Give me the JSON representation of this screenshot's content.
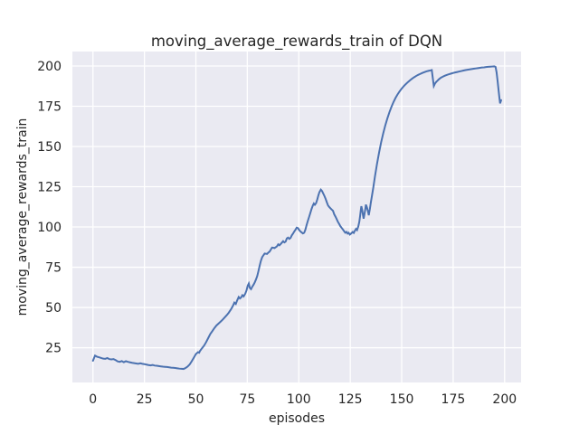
{
  "chart_data": {
    "type": "line",
    "title": "moving_average_rewards_train of DQN",
    "xlabel": "episodes",
    "ylabel": "moving_average_rewards_train",
    "xlim": [
      -10,
      208
    ],
    "ylim": [
      3.4,
      209
    ],
    "xticks": [
      0,
      25,
      50,
      75,
      100,
      125,
      150,
      175,
      200
    ],
    "yticks": [
      25,
      50,
      75,
      100,
      125,
      150,
      175,
      200
    ],
    "grid": true,
    "legend_position": "none",
    "colors": {
      "line": "#4C72B0",
      "plot_background": "#EAEAF2",
      "grid": "#FFFFFF",
      "text": "#262626",
      "figure_background": "#FFFFFF"
    },
    "series": [
      {
        "name": "moving_average_rewards_train",
        "points": [
          [
            0,
            16.9
          ],
          [
            1,
            20.1
          ],
          [
            2,
            19.4
          ],
          [
            3,
            19.0
          ],
          [
            4,
            18.6
          ],
          [
            5,
            18.2
          ],
          [
            6,
            18.1
          ],
          [
            7,
            18.6
          ],
          [
            8,
            17.9
          ],
          [
            9,
            17.7
          ],
          [
            10,
            17.9
          ],
          [
            11,
            17.3
          ],
          [
            12,
            16.5
          ],
          [
            13,
            16.2
          ],
          [
            14,
            16.7
          ],
          [
            15,
            16.0
          ],
          [
            16,
            16.6
          ],
          [
            17,
            16.2
          ],
          [
            18,
            15.9
          ],
          [
            19,
            15.6
          ],
          [
            20,
            15.4
          ],
          [
            21,
            15.2
          ],
          [
            22,
            15.0
          ],
          [
            23,
            15.3
          ],
          [
            24,
            15.0
          ],
          [
            25,
            14.8
          ],
          [
            26,
            14.5
          ],
          [
            27,
            14.2
          ],
          [
            28,
            14.0
          ],
          [
            29,
            14.3
          ],
          [
            30,
            13.9
          ],
          [
            31,
            13.8
          ],
          [
            32,
            13.6
          ],
          [
            33,
            13.4
          ],
          [
            34,
            13.2
          ],
          [
            35,
            13.1
          ],
          [
            36,
            13.0
          ],
          [
            37,
            12.8
          ],
          [
            38,
            12.6
          ],
          [
            39,
            12.5
          ],
          [
            40,
            12.4
          ],
          [
            41,
            12.2
          ],
          [
            42,
            12.0
          ],
          [
            43,
            11.9
          ],
          [
            44,
            11.8
          ],
          [
            45,
            12.4
          ],
          [
            46,
            13.3
          ],
          [
            47,
            14.6
          ],
          [
            48,
            16.6
          ],
          [
            49,
            18.8
          ],
          [
            50,
            21.0
          ],
          [
            51,
            22.2
          ],
          [
            51.6,
            21.9
          ],
          [
            52,
            23.0
          ],
          [
            53,
            24.7
          ],
          [
            54,
            26.3
          ],
          [
            55,
            28.5
          ],
          [
            56,
            31.0
          ],
          [
            57,
            33.5
          ],
          [
            58,
            35.3
          ],
          [
            59,
            37.2
          ],
          [
            60,
            38.8
          ],
          [
            61,
            40.0
          ],
          [
            62,
            41.2
          ],
          [
            63,
            42.4
          ],
          [
            64,
            43.8
          ],
          [
            65,
            45.2
          ],
          [
            66,
            46.8
          ],
          [
            67,
            48.7
          ],
          [
            68,
            51.0
          ],
          [
            68.7,
            53.0
          ],
          [
            69.4,
            52.2
          ],
          [
            70,
            54.2
          ],
          [
            70.8,
            56.5
          ],
          [
            71.4,
            55.6
          ],
          [
            72,
            56.2
          ],
          [
            72.6,
            57.6
          ],
          [
            73.2,
            56.9
          ],
          [
            74,
            58.6
          ],
          [
            74.6,
            60.6
          ],
          [
            75.2,
            63.6
          ],
          [
            75.7,
            64.9
          ],
          [
            76.2,
            62.2
          ],
          [
            76.8,
            61.4
          ],
          [
            77.4,
            62.9
          ],
          [
            78,
            64.1
          ],
          [
            78.6,
            65.6
          ],
          [
            79.2,
            67.4
          ],
          [
            79.8,
            69.5
          ],
          [
            80.4,
            72.6
          ],
          [
            81,
            76.0
          ],
          [
            81.6,
            79.0
          ],
          [
            82.2,
            81.2
          ],
          [
            82.8,
            82.4
          ],
          [
            83.4,
            83.5
          ],
          [
            84,
            83.4
          ],
          [
            84.6,
            83.3
          ],
          [
            85.2,
            84.1
          ],
          [
            85.8,
            84.7
          ],
          [
            86.4,
            85.9
          ],
          [
            87,
            87.2
          ],
          [
            87.6,
            87.1
          ],
          [
            88.2,
            86.9
          ],
          [
            88.8,
            87.4
          ],
          [
            89.4,
            88.0
          ],
          [
            90,
            89.2
          ],
          [
            90.6,
            88.6
          ],
          [
            91.2,
            89.4
          ],
          [
            91.8,
            90.3
          ],
          [
            92.4,
            91.2
          ],
          [
            93,
            90.4
          ],
          [
            93.6,
            90.9
          ],
          [
            94.2,
            92.9
          ],
          [
            94.8,
            93.4
          ],
          [
            95.4,
            92.6
          ],
          [
            96,
            93.2
          ],
          [
            96.6,
            94.8
          ],
          [
            97.2,
            95.9
          ],
          [
            97.8,
            97.2
          ],
          [
            98.4,
            98.3
          ],
          [
            99,
            99.6
          ],
          [
            99.6,
            99.3
          ],
          [
            100.2,
            98.1
          ],
          [
            100.8,
            97.2
          ],
          [
            101.4,
            96.6
          ],
          [
            102,
            96.0
          ],
          [
            102.6,
            96.4
          ],
          [
            103.2,
            98.3
          ],
          [
            103.8,
            101.2
          ],
          [
            104.4,
            103.8
          ],
          [
            105,
            106.2
          ],
          [
            105.6,
            108.7
          ],
          [
            106.2,
            111.2
          ],
          [
            106.8,
            113.3
          ],
          [
            107.3,
            114.6
          ],
          [
            107.8,
            113.8
          ],
          [
            108.4,
            114.8
          ],
          [
            109,
            117.2
          ],
          [
            109.5,
            119.6
          ],
          [
            110,
            121.6
          ],
          [
            110.7,
            123.2
          ],
          [
            111.3,
            122.3
          ],
          [
            111.8,
            121.0
          ],
          [
            112.4,
            119.4
          ],
          [
            113,
            117.6
          ],
          [
            113.6,
            115.4
          ],
          [
            114.2,
            113.4
          ],
          [
            114.8,
            112.4
          ],
          [
            115.4,
            111.6
          ],
          [
            116,
            110.8
          ],
          [
            116.6,
            110.1
          ],
          [
            117.2,
            107.9
          ],
          [
            117.8,
            106.5
          ],
          [
            118.4,
            104.9
          ],
          [
            119,
            103.2
          ],
          [
            119.6,
            101.9
          ],
          [
            120.2,
            100.5
          ],
          [
            120.8,
            99.5
          ],
          [
            121.4,
            98.5
          ],
          [
            122,
            97.4
          ],
          [
            122.6,
            96.4
          ],
          [
            123.2,
            96.9
          ],
          [
            123.7,
            95.9
          ],
          [
            124.2,
            96.4
          ],
          [
            124.8,
            95.3
          ],
          [
            125.4,
            95.9
          ],
          [
            126.2,
            96.9
          ],
          [
            126.7,
            96.3
          ],
          [
            127.3,
            97.8
          ],
          [
            127.8,
            98.8
          ],
          [
            128.3,
            98.1
          ],
          [
            128.9,
            100.3
          ],
          [
            129.4,
            103.2
          ],
          [
            129.8,
            107.0
          ],
          [
            130.1,
            110.2
          ],
          [
            130.4,
            112.9
          ],
          [
            130.8,
            110.6
          ],
          [
            131.2,
            107.3
          ],
          [
            131.5,
            105.2
          ],
          [
            131.9,
            108.0
          ],
          [
            132.3,
            111.0
          ],
          [
            132.6,
            113.9
          ],
          [
            133.1,
            112.2
          ],
          [
            133.6,
            109.8
          ],
          [
            134,
            107.3
          ],
          [
            134.5,
            110.9
          ],
          [
            135,
            115.2
          ],
          [
            135.6,
            119.8
          ],
          [
            136.2,
            124.5
          ],
          [
            137,
            131.4
          ],
          [
            138,
            139.2
          ],
          [
            139,
            146.2
          ],
          [
            140,
            152.6
          ],
          [
            141,
            158.1
          ],
          [
            142,
            163.0
          ],
          [
            143,
            167.3
          ],
          [
            144,
            171.2
          ],
          [
            145,
            174.6
          ],
          [
            146,
            177.6
          ],
          [
            147,
            180.2
          ],
          [
            148,
            182.4
          ],
          [
            149,
            184.3
          ],
          [
            150,
            186.0
          ],
          [
            151,
            187.5
          ],
          [
            152,
            188.8
          ],
          [
            153,
            190.0
          ],
          [
            154,
            191.1
          ],
          [
            155,
            192.1
          ],
          [
            156,
            193.0
          ],
          [
            157,
            193.8
          ],
          [
            158,
            194.5
          ],
          [
            159,
            195.1
          ],
          [
            160,
            195.7
          ],
          [
            161,
            196.2
          ],
          [
            162,
            196.7
          ],
          [
            163,
            197.0
          ],
          [
            164,
            197.3
          ],
          [
            164.6,
            197.5
          ],
          [
            165.1,
            192.5
          ],
          [
            165.6,
            187.6
          ],
          [
            166.2,
            189.2
          ],
          [
            166.8,
            190.2
          ],
          [
            167.4,
            190.9
          ],
          [
            168,
            191.7
          ],
          [
            169,
            192.7
          ],
          [
            170,
            193.4
          ],
          [
            171,
            194.0
          ],
          [
            172,
            194.5
          ],
          [
            173,
            194.9
          ],
          [
            174,
            195.3
          ],
          [
            175,
            195.7
          ],
          [
            176,
            196.0
          ],
          [
            177,
            196.3
          ],
          [
            178,
            196.6
          ],
          [
            179,
            196.9
          ],
          [
            180,
            197.2
          ],
          [
            181,
            197.5
          ],
          [
            182,
            197.7
          ],
          [
            183,
            197.9
          ],
          [
            184,
            198.1
          ],
          [
            185,
            198.3
          ],
          [
            186,
            198.5
          ],
          [
            187,
            198.7
          ],
          [
            188,
            198.9
          ],
          [
            189,
            199.1
          ],
          [
            190,
            199.2
          ],
          [
            191,
            199.4
          ],
          [
            192,
            199.5
          ],
          [
            193,
            199.6
          ],
          [
            194,
            199.7
          ],
          [
            195,
            199.8
          ],
          [
            195.6,
            199.4
          ],
          [
            196.1,
            196.0
          ],
          [
            196.6,
            190.5
          ],
          [
            197.1,
            184.5
          ],
          [
            197.5,
            179.8
          ],
          [
            197.8,
            176.8
          ],
          [
            198.3,
            178.8
          ]
        ]
      }
    ]
  }
}
